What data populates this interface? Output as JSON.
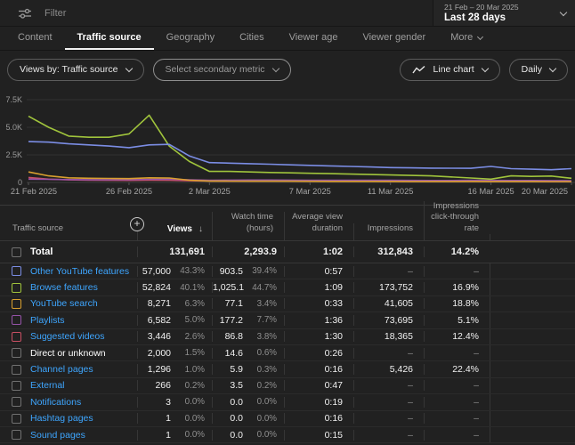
{
  "topbar": {
    "filter_placeholder": "Filter",
    "date_range": "21 Feb – 20 Mar 2025",
    "date_label": "Last 28 days"
  },
  "tabs": [
    {
      "label": "Content",
      "active": false,
      "chevron": false
    },
    {
      "label": "Traffic source",
      "active": true,
      "chevron": false
    },
    {
      "label": "Geography",
      "active": false,
      "chevron": false
    },
    {
      "label": "Cities",
      "active": false,
      "chevron": false
    },
    {
      "label": "Viewer age",
      "active": false,
      "chevron": false
    },
    {
      "label": "Viewer gender",
      "active": false,
      "chevron": false
    },
    {
      "label": "More",
      "active": false,
      "chevron": true
    }
  ],
  "controls": {
    "views_by": "Views by: Traffic source",
    "secondary_metric": "Select secondary metric",
    "chart_type": "Line chart",
    "granularity": "Daily"
  },
  "chart_data": {
    "type": "line",
    "points": 28,
    "x_range": [
      "21 Feb 2025",
      "20 Mar 2025"
    ],
    "ylim": [
      0,
      7500
    ],
    "grid": true,
    "legend": "none (colors match table checkboxes)",
    "y_ticks": [
      {
        "value": 0,
        "label": "0"
      },
      {
        "value": 2500,
        "label": "2.5K"
      },
      {
        "value": 5000,
        "label": "5.0K"
      },
      {
        "value": 7500,
        "label": "7.5K"
      }
    ],
    "x_tick_labels": [
      {
        "index": 0,
        "label": "21 Feb 2025"
      },
      {
        "index": 5,
        "label": "26 Feb 2025"
      },
      {
        "index": 9,
        "label": "2 Mar 2025"
      },
      {
        "index": 14,
        "label": "7 Mar 2025"
      },
      {
        "index": 18,
        "label": "11 Mar 2025"
      },
      {
        "index": 23,
        "label": "16 Mar 2025"
      },
      {
        "index": 27,
        "label": "20 Mar 2025"
      }
    ],
    "series": [
      {
        "name": "Other YouTube features",
        "color": "#7b8de4",
        "values": [
          3700,
          3650,
          3500,
          3400,
          3300,
          3150,
          3400,
          3450,
          2400,
          1800,
          1750,
          1700,
          1650,
          1600,
          1550,
          1500,
          1450,
          1400,
          1350,
          1320,
          1300,
          1290,
          1280,
          1450,
          1250,
          1200,
          1150,
          1250
        ]
      },
      {
        "name": "Browse features",
        "color": "#a0c43c",
        "values": [
          6000,
          5000,
          4200,
          4100,
          4100,
          4400,
          6100,
          3300,
          1900,
          1000,
          1000,
          950,
          900,
          870,
          830,
          800,
          760,
          720,
          680,
          640,
          600,
          500,
          400,
          300,
          600,
          550,
          580,
          380
        ]
      },
      {
        "name": "YouTube search",
        "color": "#d9a02f",
        "values": [
          950,
          600,
          420,
          380,
          360,
          350,
          420,
          400,
          200,
          130,
          120,
          115,
          110,
          110,
          105,
          100,
          100,
          95,
          95,
          90,
          90,
          90,
          95,
          90,
          85,
          85,
          80,
          80
        ]
      },
      {
        "name": "Playlists",
        "color": "#9553a8",
        "values": [
          300,
          280,
          260,
          250,
          250,
          255,
          280,
          300,
          240,
          200,
          210,
          220,
          215,
          210,
          205,
          200,
          195,
          190,
          190,
          185,
          180,
          180,
          190,
          185,
          180,
          175,
          170,
          165
        ]
      },
      {
        "name": "Suggested videos",
        "color": "#c94f63",
        "values": [
          450,
          300,
          230,
          200,
          190,
          185,
          200,
          190,
          150,
          120,
          115,
          110,
          110,
          105,
          100,
          100,
          95,
          95,
          90,
          90,
          85,
          85,
          90,
          85,
          80,
          80,
          75,
          75
        ]
      }
    ]
  },
  "table": {
    "columns": {
      "source": "Traffic source",
      "views": "Views",
      "watch": "Watch time (hours)",
      "avd": "Average view duration",
      "impressions": "Impressions",
      "ctr": "Impressions click-through rate"
    },
    "sort": {
      "column": "Views",
      "direction": "desc",
      "arrow": "↓"
    },
    "total": {
      "label": "Total",
      "views": "131,691",
      "watch": "2,293.9",
      "avd": "1:02",
      "impressions": "312,843",
      "ctr": "14.2%"
    },
    "rows": [
      {
        "label": "Other YouTube features",
        "link": true,
        "color": "#7b8de4",
        "views": "57,000",
        "views_pct": "43.3%",
        "watch": "903.5",
        "watch_pct": "39.4%",
        "avd": "0:57",
        "impressions": "–",
        "ctr": "–"
      },
      {
        "label": "Browse features",
        "link": true,
        "color": "#a0c43c",
        "views": "52,824",
        "views_pct": "40.1%",
        "watch": "1,025.1",
        "watch_pct": "44.7%",
        "avd": "1:09",
        "impressions": "173,752",
        "ctr": "16.9%"
      },
      {
        "label": "YouTube search",
        "link": true,
        "color": "#d9a02f",
        "views": "8,271",
        "views_pct": "6.3%",
        "watch": "77.1",
        "watch_pct": "3.4%",
        "avd": "0:33",
        "impressions": "41,605",
        "ctr": "18.8%"
      },
      {
        "label": "Playlists",
        "link": true,
        "color": "#9553a8",
        "views": "6,582",
        "views_pct": "5.0%",
        "watch": "177.2",
        "watch_pct": "7.7%",
        "avd": "1:36",
        "impressions": "73,695",
        "ctr": "5.1%"
      },
      {
        "label": "Suggested videos",
        "link": true,
        "color": "#c94f63",
        "views": "3,446",
        "views_pct": "2.6%",
        "watch": "86.8",
        "watch_pct": "3.8%",
        "avd": "1:30",
        "impressions": "18,365",
        "ctr": "12.4%"
      },
      {
        "label": "Direct or unknown",
        "link": false,
        "color": null,
        "views": "2,000",
        "views_pct": "1.5%",
        "watch": "14.6",
        "watch_pct": "0.6%",
        "avd": "0:26",
        "impressions": "–",
        "ctr": "–"
      },
      {
        "label": "Channel pages",
        "link": true,
        "color": null,
        "views": "1,296",
        "views_pct": "1.0%",
        "watch": "5.9",
        "watch_pct": "0.3%",
        "avd": "0:16",
        "impressions": "5,426",
        "ctr": "22.4%"
      },
      {
        "label": "External",
        "link": true,
        "color": null,
        "views": "266",
        "views_pct": "0.2%",
        "watch": "3.5",
        "watch_pct": "0.2%",
        "avd": "0:47",
        "impressions": "–",
        "ctr": "–"
      },
      {
        "label": "Notifications",
        "link": true,
        "color": null,
        "views": "3",
        "views_pct": "0.0%",
        "watch": "0.0",
        "watch_pct": "0.0%",
        "avd": "0:19",
        "impressions": "–",
        "ctr": "–"
      },
      {
        "label": "Hashtag pages",
        "link": true,
        "color": null,
        "views": "1",
        "views_pct": "0.0%",
        "watch": "0.0",
        "watch_pct": "0.0%",
        "avd": "0:16",
        "impressions": "–",
        "ctr": "–"
      },
      {
        "label": "Sound pages",
        "link": true,
        "color": null,
        "views": "1",
        "views_pct": "0.0%",
        "watch": "0.0",
        "watch_pct": "0.0%",
        "avd": "0:15",
        "impressions": "–",
        "ctr": "–"
      }
    ]
  }
}
